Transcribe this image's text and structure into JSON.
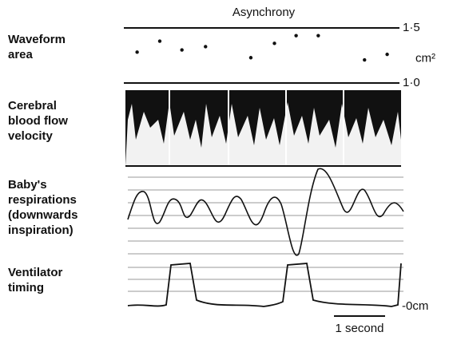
{
  "chart_data": {
    "type": "scatter",
    "title": "Asynchrony",
    "x": [
      0.27,
      0.73,
      1.18,
      1.66,
      2.58,
      3.06,
      3.5,
      3.95,
      4.89,
      5.35
    ],
    "values": [
      1.28,
      1.38,
      1.3,
      1.33,
      1.23,
      1.36,
      1.43,
      1.43,
      1.21,
      1.26
    ],
    "color": "#111111",
    "xlim": [
      0,
      5.6
    ],
    "ylim": [
      1.0,
      1.5
    ],
    "yticks": [
      {
        "value": 1.0,
        "label": "1·0"
      },
      {
        "value": 1.5,
        "label": "1·5"
      }
    ],
    "y_unit": "cm²"
  },
  "panel_labels": [
    [
      "Waveform",
      "area"
    ],
    [
      "Cerebral",
      "blood flow",
      "velocity"
    ],
    [
      "Baby's",
      "respirations",
      "(downwards",
      " inspiration)"
    ],
    [
      "Ventilator",
      "timing"
    ]
  ],
  "baseline_label": "-0cm",
  "scale_bar_label": "1 second"
}
